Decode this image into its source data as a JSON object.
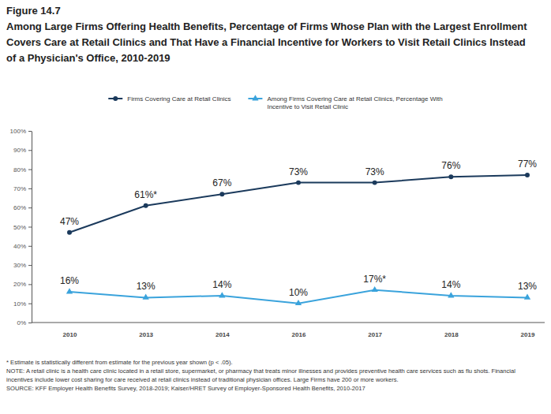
{
  "chart_data": {
    "type": "line",
    "figure_label": "Figure 14.7",
    "title": "Among Large Firms Offering Health Benefits, Percentage of Firms Whose Plan with the Largest Enrollment Covers Care at Retail Clinics and That Have a Financial Incentive for Workers to Visit Retail Clinics Instead of a Physician's Office, 2010-2019",
    "categories": [
      "2010",
      "2013",
      "2014",
      "2016",
      "2017",
      "2018",
      "2019"
    ],
    "ylim": [
      0,
      100
    ],
    "yticks": [
      {
        "value": 0,
        "label": "0%"
      },
      {
        "value": 10,
        "label": "10%"
      },
      {
        "value": 20,
        "label": "20%"
      },
      {
        "value": 30,
        "label": "30%"
      },
      {
        "value": 40,
        "label": "40%"
      },
      {
        "value": 50,
        "label": "50%"
      },
      {
        "value": 60,
        "label": "60%"
      },
      {
        "value": 70,
        "label": "70%"
      },
      {
        "value": 80,
        "label": "80%"
      },
      {
        "value": 90,
        "label": "90%"
      },
      {
        "value": 100,
        "label": "100%"
      }
    ],
    "grid": false,
    "legend": "top",
    "data_labels": true,
    "series": [
      {
        "name": "Firms Covering Care at Retail Clinics",
        "color": "#1b3a5c",
        "marker": "circle",
        "values": [
          47,
          61,
          67,
          73,
          73,
          76,
          77
        ],
        "value_labels": [
          "47%",
          "61%*",
          "67%",
          "73%",
          "73%",
          "76%",
          "77%"
        ]
      },
      {
        "name": "Among Firms Covering Care at Retail Clinics, Percentage With Incentive to Visit Retail Clinic",
        "color": "#3aa3dc",
        "marker": "triangle",
        "values": [
          16,
          13,
          14,
          10,
          17,
          14,
          13
        ],
        "value_labels": [
          "16%",
          "13%",
          "14%",
          "10%",
          "17%*",
          "14%",
          "13%"
        ]
      }
    ],
    "notes": [
      "* Estimate is statistically different from estimate for the previous year shown (p < .05).",
      "NOTE: A retail clinic is a health care clinic located in a retail store, supermarket, or pharmacy that treats minor illnesses and provides preventive health care services such as flu shots. Financial incentives include lower cost sharing for care received at retail clinics instead of traditional physician offices. Large Firms have 200 or more workers.",
      "SOURCE: KFF Employer Health Benefits Survey, 2018-2019; Kaiser/HRET Survey of Employer-Sponsored Health Benefits, 2010-2017"
    ]
  }
}
